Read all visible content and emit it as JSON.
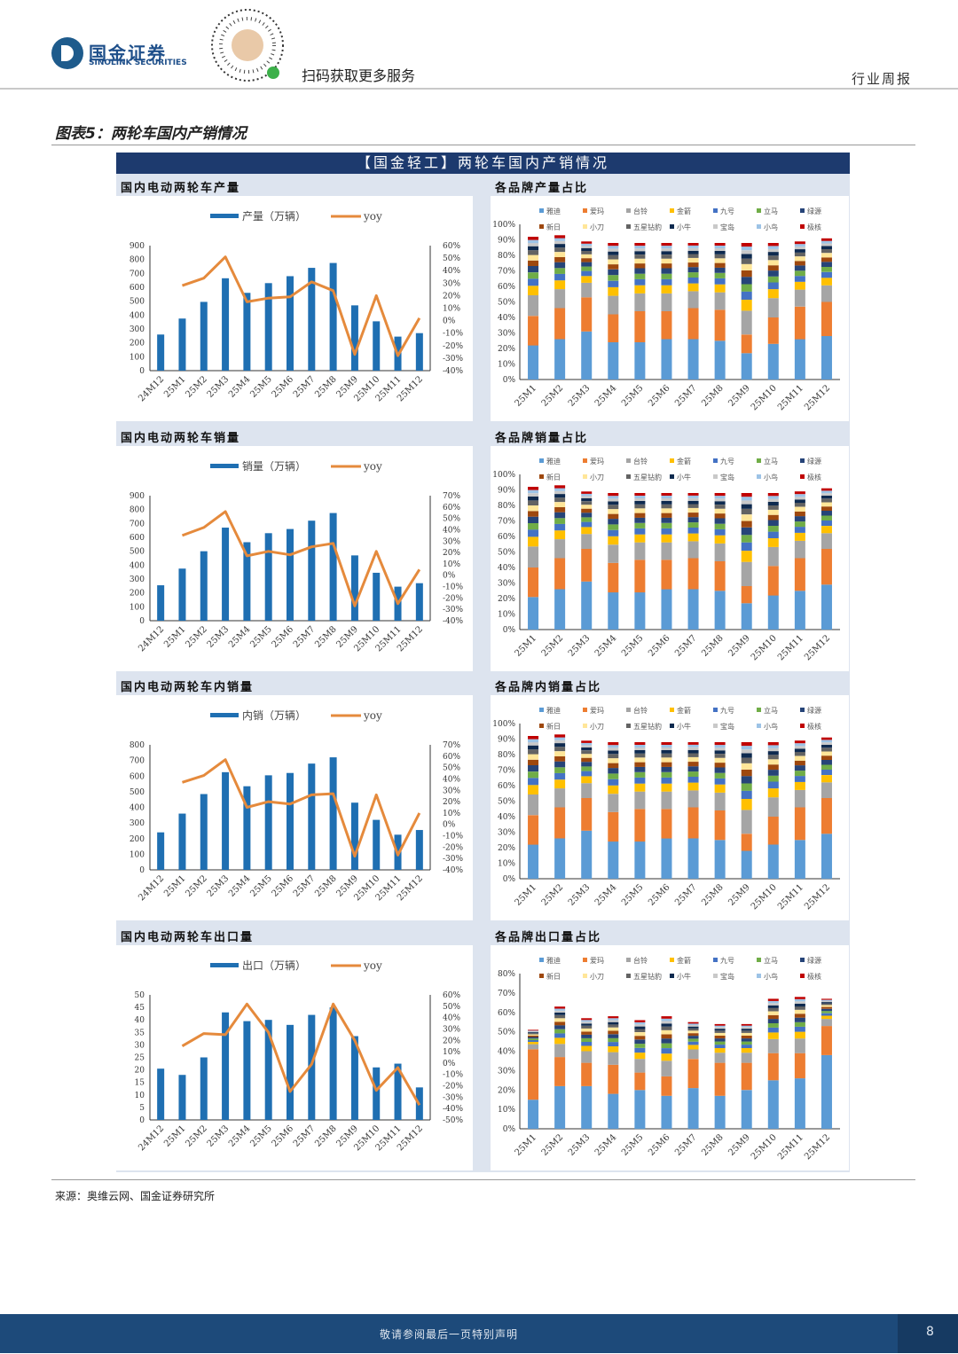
{
  "header": {
    "company_cn": "国金证券",
    "company_en": "SINOLINK SECURITIES",
    "qr_caption": "扫码获取更多服务",
    "report_type": "行业周报"
  },
  "figure": {
    "title": "图表5：两轮车国内产销情况",
    "banner": "【国金轻工】两轮车国内产销情况"
  },
  "footer": {
    "source": "来源：奥维云网、国金证券研究所",
    "disclaimer": "敬请参阅最后一页特别声明",
    "page_number": "8"
  },
  "colors": {
    "bar": "#1f6fb2",
    "line": "#e58a3c",
    "banner": "#1d3a6e",
    "footer": "#1d4a7a"
  },
  "brands": [
    "雅迪",
    "爱玛",
    "台铃",
    "金箭",
    "九号",
    "立马",
    "绿源",
    "新日",
    "小刀",
    "五星钻豹",
    "小牛",
    "宝岛",
    "小鸟",
    "极核"
  ],
  "brand_colors": [
    "#5b9bd5",
    "#ed7d31",
    "#a5a5a5",
    "#ffc000",
    "#4472c4",
    "#70ad47",
    "#264478",
    "#9e480e",
    "#ffe699",
    "#636363",
    "#0e2a4f",
    "#c9c9c9",
    "#9dc3e6",
    "#c00000"
  ],
  "chart_data": [
    {
      "type": "bar+line",
      "section": "国内电动两轮车产量",
      "legend": [
        "产量（万辆）",
        "yoy"
      ],
      "categories": [
        "24M12",
        "25M1",
        "25M2",
        "25M3",
        "25M4",
        "25M5",
        "25M6",
        "25M7",
        "25M8",
        "25M9",
        "25M10",
        "25M11",
        "25M12"
      ],
      "values": [
        260,
        375,
        495,
        665,
        560,
        630,
        680,
        740,
        775,
        470,
        355,
        245,
        270
      ],
      "yoy": [
        null,
        28,
        34,
        51,
        15,
        18,
        19,
        31,
        24,
        -27,
        20,
        -28,
        2
      ],
      "ylim": [
        0,
        900
      ],
      "yticks": [
        "0",
        "100",
        "200",
        "300",
        "400",
        "500",
        "600",
        "700",
        "800",
        "900"
      ],
      "y2lim": [
        -40,
        60
      ],
      "y2ticks": [
        "-40%",
        "-30%",
        "-20%",
        "-10%",
        "0%",
        "10%",
        "20%",
        "30%",
        "40%",
        "50%",
        "60%"
      ]
    },
    {
      "type": "stacked_bar",
      "section": "各品牌产量占比",
      "categories": [
        "25M1",
        "25M2",
        "25M3",
        "25M4",
        "25M5",
        "25M6",
        "25M7",
        "25M8",
        "25M9",
        "25M10",
        "25M11",
        "25M12"
      ],
      "ylim": [
        0,
        100
      ],
      "yticks": [
        "0%",
        "10%",
        "20%",
        "30%",
        "40%",
        "50%",
        "60%",
        "70%",
        "80%",
        "90%",
        "100%"
      ],
      "totals": [
        92,
        93,
        89,
        88,
        88,
        88,
        88,
        88,
        88,
        88,
        89,
        91
      ],
      "top": [
        22,
        26,
        31,
        24,
        24,
        26,
        26,
        25,
        17,
        23,
        26,
        28
      ],
      "second": [
        19,
        20,
        22,
        18,
        20,
        18,
        20,
        20,
        12,
        17,
        21,
        22
      ]
    },
    {
      "type": "bar+line",
      "section": "国内电动两轮车销量",
      "legend": [
        "销量（万辆）",
        "yoy"
      ],
      "categories": [
        "24M12",
        "25M1",
        "25M2",
        "25M3",
        "25M4",
        "25M5",
        "25M6",
        "25M7",
        "25M8",
        "25M9",
        "25M10",
        "25M11",
        "25M12"
      ],
      "values": [
        255,
        375,
        500,
        670,
        565,
        630,
        660,
        720,
        775,
        470,
        345,
        245,
        270
      ],
      "yoy": [
        null,
        35,
        42,
        56,
        17,
        21,
        18,
        25,
        28,
        -27,
        21,
        -25,
        5
      ],
      "ylim": [
        0,
        900
      ],
      "yticks": [
        "0",
        "100",
        "200",
        "300",
        "400",
        "500",
        "600",
        "700",
        "800",
        "900"
      ],
      "y2lim": [
        -40,
        70
      ],
      "y2ticks": [
        "-40%",
        "-30%",
        "-20%",
        "-10%",
        "0%",
        "10%",
        "20%",
        "30%",
        "40%",
        "50%",
        "60%",
        "70%"
      ]
    },
    {
      "type": "stacked_bar",
      "section": "各品牌销量占比",
      "categories": [
        "25M1",
        "25M2",
        "25M3",
        "25M4",
        "25M5",
        "25M6",
        "25M7",
        "25M8",
        "25M9",
        "25M10",
        "25M11",
        "25M12"
      ],
      "ylim": [
        0,
        100
      ],
      "yticks": [
        "0%",
        "10%",
        "20%",
        "30%",
        "40%",
        "50%",
        "60%",
        "70%",
        "80%",
        "90%",
        "100%"
      ],
      "totals": [
        92,
        93,
        89,
        88,
        88,
        88,
        88,
        88,
        88,
        88,
        89,
        91
      ],
      "top": [
        21,
        26,
        31,
        24,
        24,
        26,
        26,
        25,
        17,
        22,
        25,
        29
      ],
      "second": [
        19,
        20,
        21,
        19,
        21,
        19,
        20,
        19,
        11,
        19,
        21,
        23
      ]
    },
    {
      "type": "bar+line",
      "section": "国内电动两轮车内销量",
      "legend": [
        "内销（万辆）",
        "yoy"
      ],
      "categories": [
        "24M12",
        "25M1",
        "25M2",
        "25M3",
        "25M4",
        "25M5",
        "25M6",
        "25M7",
        "25M8",
        "25M9",
        "25M10",
        "25M11",
        "25M12"
      ],
      "values": [
        240,
        360,
        485,
        625,
        535,
        605,
        620,
        680,
        720,
        430,
        320,
        225,
        255
      ],
      "yoy": [
        null,
        37,
        43,
        57,
        15,
        20,
        18,
        26,
        27,
        -28,
        26,
        -27,
        10
      ],
      "ylim": [
        0,
        800
      ],
      "yticks": [
        "0",
        "100",
        "200",
        "300",
        "400",
        "500",
        "600",
        "700",
        "800"
      ],
      "y2lim": [
        -40,
        70
      ],
      "y2ticks": [
        "-40%",
        "-30%",
        "-20%",
        "-10%",
        "0%",
        "10%",
        "20%",
        "30%",
        "40%",
        "50%",
        "60%",
        "70%"
      ]
    },
    {
      "type": "stacked_bar",
      "section": "各品牌内销量占比",
      "categories": [
        "25M1",
        "25M2",
        "25M3",
        "25M4",
        "25M5",
        "25M6",
        "25M7",
        "25M8",
        "25M9",
        "25M10",
        "25M11",
        "25M12"
      ],
      "ylim": [
        0,
        100
      ],
      "yticks": [
        "0%",
        "10%",
        "20%",
        "30%",
        "40%",
        "50%",
        "60%",
        "70%",
        "80%",
        "90%",
        "100%"
      ],
      "totals": [
        92,
        93,
        89,
        88,
        88,
        88,
        88,
        88,
        88,
        88,
        89,
        91
      ],
      "top": [
        22,
        26,
        31,
        24,
        24,
        26,
        26,
        25,
        18,
        22,
        25,
        29
      ],
      "second": [
        19,
        20,
        21,
        19,
        21,
        19,
        20,
        19,
        11,
        18,
        21,
        23
      ]
    },
    {
      "type": "bar+line",
      "section": "国内电动两轮车出口量",
      "legend": [
        "出口（万辆）",
        "yoy"
      ],
      "categories": [
        "24M12",
        "25M1",
        "25M2",
        "25M3",
        "25M4",
        "25M5",
        "25M6",
        "25M7",
        "25M8",
        "25M9",
        "25M10",
        "25M11",
        "25M12"
      ],
      "values": [
        20.5,
        18,
        25,
        43,
        39.5,
        40,
        38,
        42,
        45,
        33.5,
        21,
        22.5,
        13
      ],
      "yoy": [
        null,
        15,
        26,
        25,
        52,
        27,
        -25,
        -1,
        52,
        20,
        -24,
        -4,
        -37
      ],
      "ylim": [
        0,
        50
      ],
      "yticks": [
        "0",
        "5",
        "10",
        "15",
        "20",
        "25",
        "30",
        "35",
        "40",
        "45",
        "50"
      ],
      "y2lim": [
        -50,
        60
      ],
      "y2ticks": [
        "-50%",
        "-40%",
        "-30%",
        "-20%",
        "-10%",
        "0%",
        "10%",
        "20%",
        "30%",
        "40%",
        "50%",
        "60%"
      ]
    },
    {
      "type": "stacked_bar",
      "section": "各品牌出口量占比",
      "categories": [
        "25M1",
        "25M2",
        "25M3",
        "25M4",
        "25M5",
        "25M6",
        "25M7",
        "25M8",
        "25M9",
        "25M10",
        "25M11",
        "25M12"
      ],
      "ylim": [
        0,
        80
      ],
      "yticks": [
        "0%",
        "10%",
        "20%",
        "30%",
        "40%",
        "50%",
        "60%",
        "70%",
        "80%"
      ],
      "totals": [
        51,
        63,
        57,
        58,
        56,
        58,
        55,
        54,
        54,
        67,
        68,
        67
      ],
      "top": [
        15,
        22,
        22,
        18,
        20,
        17,
        21,
        17,
        20,
        25,
        26,
        38
      ],
      "second": [
        26,
        15,
        12,
        15,
        9,
        10,
        15,
        17,
        14,
        14,
        13,
        15
      ]
    }
  ]
}
